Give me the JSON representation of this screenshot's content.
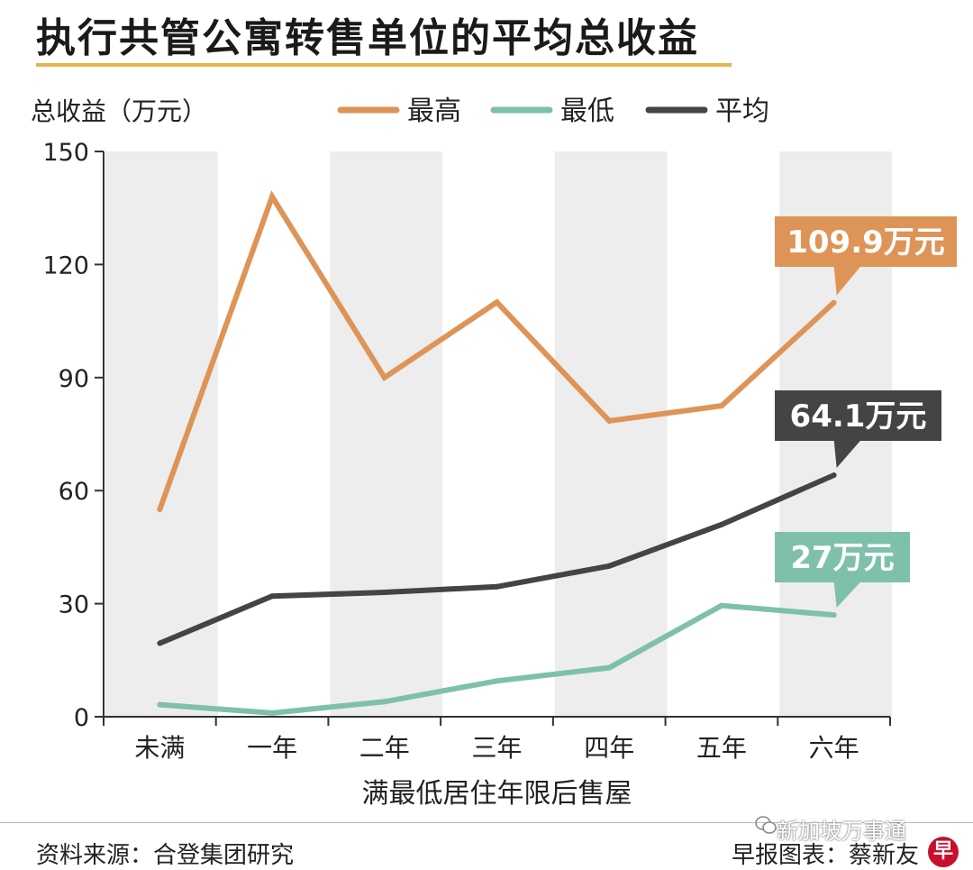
{
  "title": "执行共管公寓转售单位的平均总收益",
  "colors": {
    "highest": "#de9457",
    "lowest": "#7fc0ad",
    "average": "#444444",
    "band": "#ededed",
    "title_underline": "#e2b64e"
  },
  "chart_data": {
    "type": "line",
    "ylabel": "总收益（万元）",
    "xlabel": "满最低居住年限后售屋",
    "categories": [
      "未满",
      "一年",
      "二年",
      "三年",
      "四年",
      "五年",
      "六年"
    ],
    "ylim": [
      0,
      150
    ],
    "yticks": [
      0,
      30,
      60,
      90,
      120,
      150
    ],
    "grid": false,
    "alternating_bands": true,
    "legend_position": "top",
    "series": [
      {
        "name": "最高",
        "color": "#de9457",
        "values": [
          55,
          138,
          90,
          110,
          78.5,
          82.5,
          109.9
        ],
        "end_label": "109.9万元"
      },
      {
        "name": "最低",
        "color": "#7fc0ad",
        "values": [
          3.2,
          1.0,
          4.0,
          9.5,
          13.0,
          29.5,
          27
        ],
        "end_label": "27万元"
      },
      {
        "name": "平均",
        "color": "#444444",
        "values": [
          19.5,
          32,
          33,
          34.5,
          40,
          51,
          64.1
        ],
        "end_label": "64.1万元"
      }
    ]
  },
  "footer": {
    "source": "资料来源：合登集团研究",
    "credit": "早报图表：蔡新友",
    "logo_glyph": "早",
    "watermark": "新加坡万事通"
  }
}
